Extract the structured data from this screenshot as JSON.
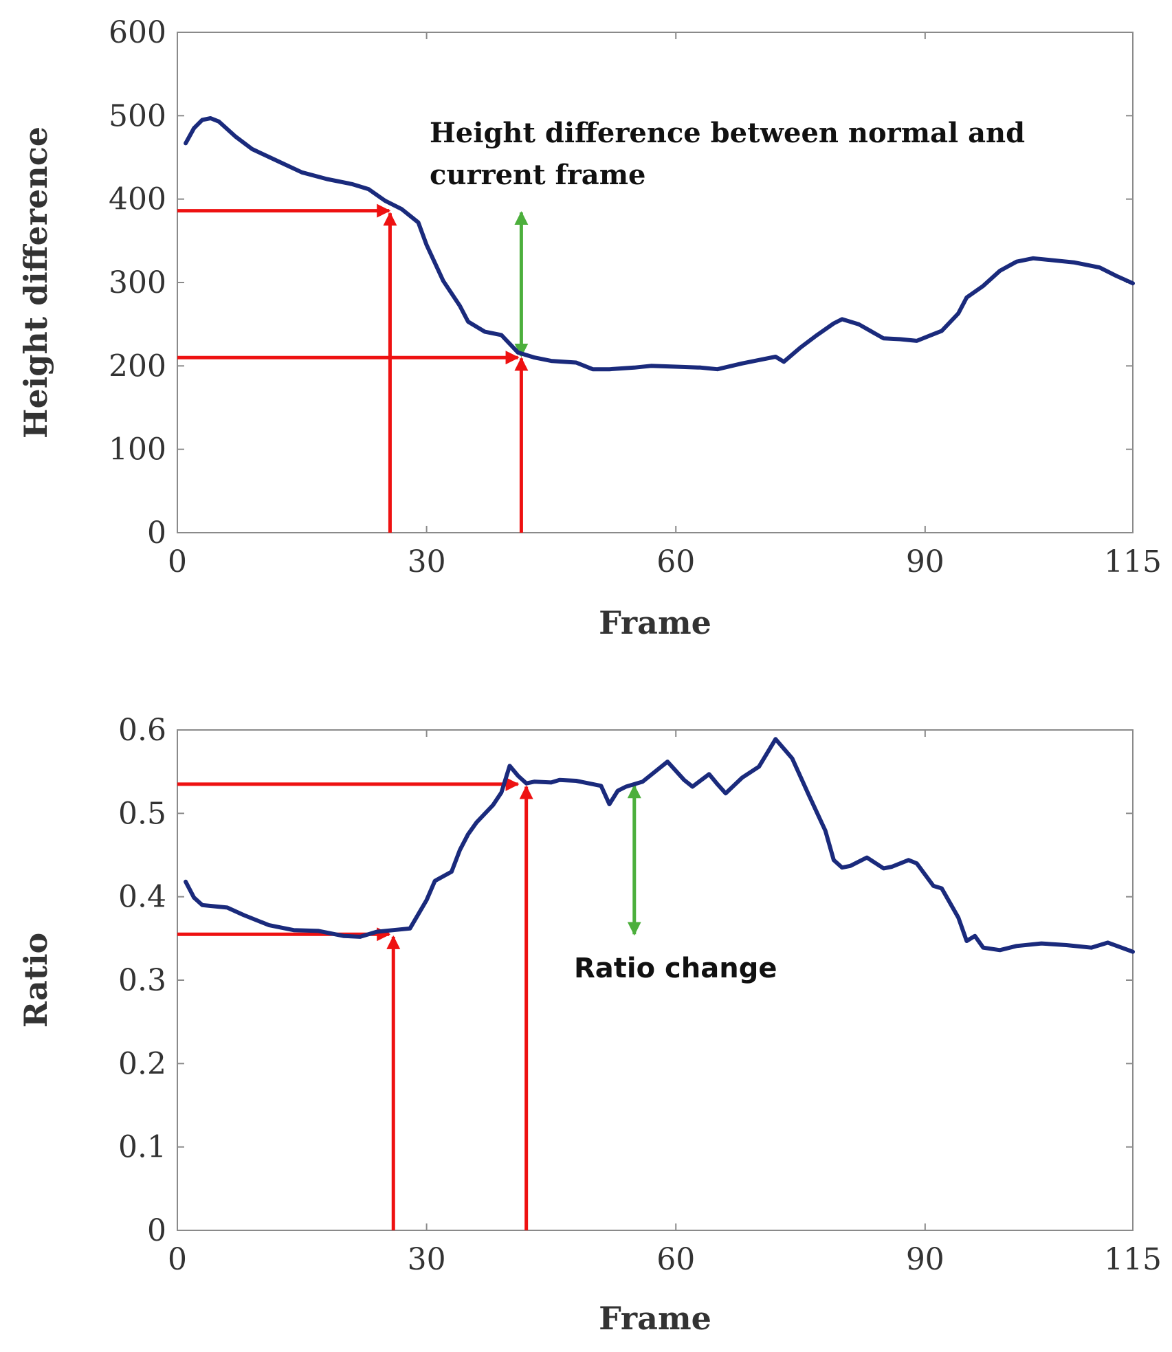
{
  "chart_data": [
    {
      "type": "line",
      "xlabel": "Frame",
      "ylabel": "Height difference",
      "xlim": [
        0,
        115
      ],
      "ylim": [
        0,
        600
      ],
      "xticks": [
        0,
        30,
        60,
        90,
        115
      ],
      "yticks": [
        0,
        100,
        200,
        300,
        400,
        500,
        600
      ],
      "grid": false,
      "series": [
        {
          "name": "Height difference",
          "color": "#1a2a7c",
          "x": [
            1,
            2,
            3,
            4,
            5,
            7,
            9,
            12,
            15,
            18,
            21,
            23,
            25,
            27,
            29,
            30,
            32,
            34,
            35,
            37,
            39,
            41,
            43,
            45,
            48,
            50,
            52,
            55,
            57,
            60,
            63,
            65,
            68,
            70,
            72,
            73,
            75,
            77,
            79,
            80,
            82,
            85,
            87,
            89,
            91,
            92,
            94,
            95,
            97,
            99,
            101,
            103,
            105,
            108,
            111,
            113,
            115
          ],
          "y": [
            467,
            485,
            495,
            497,
            493,
            475,
            460,
            446,
            432,
            424,
            418,
            412,
            398,
            388,
            372,
            345,
            302,
            272,
            253,
            241,
            237,
            216,
            210,
            206,
            204,
            196,
            196,
            198,
            200,
            199,
            198,
            196,
            203,
            207,
            211,
            205,
            222,
            237,
            251,
            256,
            250,
            233,
            232,
            230,
            238,
            242,
            263,
            282,
            296,
            314,
            325,
            329,
            327,
            324,
            318,
            308,
            299
          ]
        }
      ],
      "annotations": [
        {
          "text": "Height difference between normal and current frame",
          "line1": "Height difference between normal and",
          "line2": "current frame"
        }
      ],
      "reference_arrows": [
        {
          "kind": "horizontal",
          "color": "#ee1111",
          "from_x": 0,
          "to_x": 25.5,
          "y": 386
        },
        {
          "kind": "vertical",
          "color": "#ee1111",
          "x": 25.6,
          "from_y": 0,
          "to_y": 383
        },
        {
          "kind": "horizontal",
          "color": "#ee1111",
          "from_x": 0,
          "to_x": 41,
          "y": 210
        },
        {
          "kind": "vertical",
          "color": "#ee1111",
          "x": 41.4,
          "from_y": 0,
          "to_y": 209
        },
        {
          "kind": "double",
          "color": "#4caf3c",
          "x": 41.4,
          "from_y": 212,
          "to_y": 384
        }
      ]
    },
    {
      "type": "line",
      "xlabel": "Frame",
      "ylabel": "Ratio",
      "xlim": [
        0,
        115
      ],
      "ylim": [
        0,
        0.6
      ],
      "xticks": [
        0,
        30,
        60,
        90,
        115
      ],
      "yticks": [
        0,
        0.1,
        0.2,
        0.3,
        0.4,
        0.5,
        0.6
      ],
      "ytick_labels": [
        "0",
        "0.1",
        "0.2",
        "0.3",
        "0.4",
        "0.5",
        "0.6"
      ],
      "grid": false,
      "series": [
        {
          "name": "Ratio",
          "color": "#1a2a7c",
          "x": [
            1,
            2,
            3,
            4,
            6,
            8,
            11,
            14,
            17,
            20,
            22,
            24,
            26,
            28,
            30,
            31,
            33,
            34,
            35,
            36,
            38,
            39,
            40,
            41,
            42,
            43,
            45,
            46,
            48,
            49,
            51,
            52,
            53,
            54,
            56,
            58,
            59,
            61,
            62,
            64,
            65,
            66,
            68,
            70,
            72,
            74,
            76,
            78,
            79,
            80,
            81,
            83,
            85,
            86,
            88,
            89,
            91,
            92,
            94,
            95,
            96,
            97,
            99,
            101,
            104,
            107,
            110,
            112,
            115
          ],
          "y": [
            0.418,
            0.399,
            0.39,
            0.389,
            0.387,
            0.378,
            0.366,
            0.36,
            0.359,
            0.353,
            0.352,
            0.358,
            0.36,
            0.362,
            0.396,
            0.419,
            0.43,
            0.456,
            0.475,
            0.489,
            0.51,
            0.525,
            0.557,
            0.545,
            0.536,
            0.538,
            0.537,
            0.54,
            0.539,
            0.537,
            0.533,
            0.511,
            0.527,
            0.532,
            0.538,
            0.554,
            0.562,
            0.54,
            0.532,
            0.547,
            0.535,
            0.524,
            0.543,
            0.556,
            0.589,
            0.566,
            0.522,
            0.479,
            0.444,
            0.435,
            0.437,
            0.447,
            0.434,
            0.436,
            0.444,
            0.44,
            0.413,
            0.41,
            0.375,
            0.347,
            0.353,
            0.339,
            0.336,
            0.341,
            0.344,
            0.342,
            0.339,
            0.345,
            0.334
          ]
        }
      ],
      "annotations": [
        {
          "text": "Ratio change"
        }
      ],
      "reference_arrows": [
        {
          "kind": "horizontal",
          "color": "#ee1111",
          "from_x": 0,
          "to_x": 25.5,
          "y": 0.355
        },
        {
          "kind": "vertical",
          "color": "#ee1111",
          "x": 26,
          "from_y": 0,
          "to_y": 0.352
        },
        {
          "kind": "horizontal",
          "color": "#ee1111",
          "from_x": 0,
          "to_x": 41,
          "y": 0.535
        },
        {
          "kind": "vertical",
          "color": "#ee1111",
          "x": 42,
          "from_y": 0,
          "to_y": 0.532
        },
        {
          "kind": "double",
          "color": "#4caf3c",
          "x": 55,
          "from_y": 0.355,
          "to_y": 0.533
        }
      ]
    }
  ]
}
